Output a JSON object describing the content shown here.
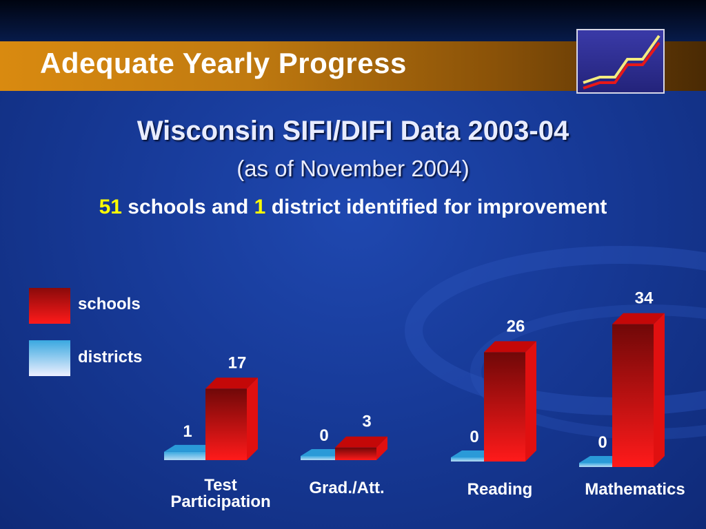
{
  "slide": {
    "title": "Adequate Yearly Progress",
    "subtitle_line1": "Wisconsin SIFI/DIFI Data 2003-04",
    "subtitle_line2": "(as of November 2004)",
    "headline": {
      "schools_count": "51",
      "text1": " schools and ",
      "district_count": "1",
      "text2": " district identified for improvement"
    }
  },
  "legend": {
    "schools": "schools",
    "districts": "districts"
  },
  "colors": {
    "schools": "#e8141c",
    "districts": "#3aa8e0",
    "highlight": "#ffff00"
  },
  "chart_data": {
    "type": "bar",
    "categories": [
      "Test Participation",
      "Grad./Att.",
      "Reading",
      "Mathematics"
    ],
    "category_lines": [
      [
        "Test",
        "Participation"
      ],
      [
        "Grad./Att."
      ],
      [
        "Reading"
      ],
      [
        "Mathematics"
      ]
    ],
    "series": [
      {
        "name": "schools",
        "values": [
          17,
          3,
          26,
          34
        ]
      },
      {
        "name": "districts",
        "values": [
          1,
          0,
          0,
          0
        ]
      }
    ],
    "ylim": [
      0,
      40
    ],
    "title": "",
    "xlabel": "",
    "ylabel": "",
    "legend_position": "left",
    "grid": false
  }
}
